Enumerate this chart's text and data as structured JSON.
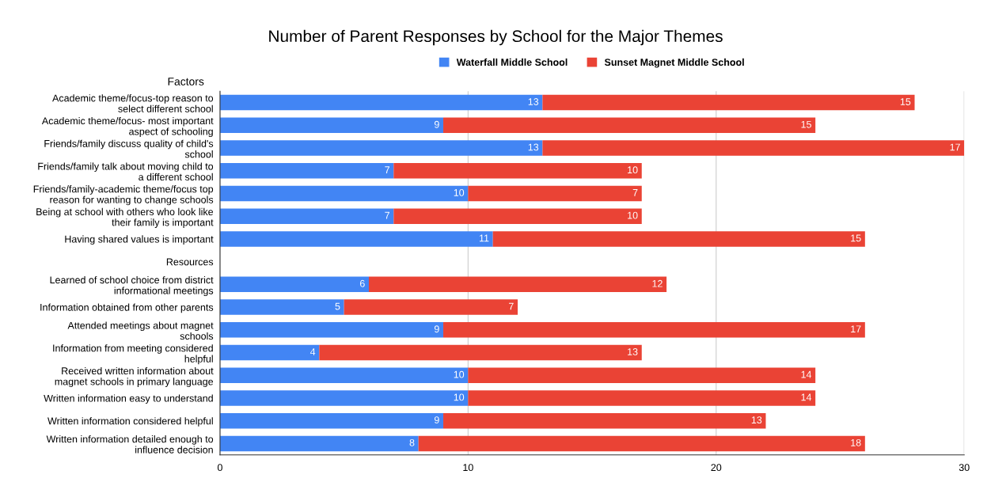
{
  "chart_data": {
    "type": "bar",
    "orientation": "horizontal",
    "stacked": true,
    "title": "Number of Parent Responses by School for the Major Themes",
    "ylabel": "Factors",
    "categories": [
      "Academic theme/focus-top reason to\nselect different school",
      "Academic theme/focus- most important\naspect of schooling",
      "Friends/family discuss quality of child's\nschool",
      "Friends/family talk about moving child to\na different school",
      "Friends/family-academic theme/focus top\nreason for wanting to change schools",
      "Being at school with others who look like\ntheir family is important",
      "Having shared values is important",
      "Resources",
      "Learned of school choice from district\ninformational meetings",
      "Information obtained from other parents",
      "Attended meetings about magnet\nschools",
      "Information from meeting considered\nhelpful",
      "Received written information about\nmagnet schools in primary language",
      "Written information easy to understand",
      "Written information considered helpful",
      "Written information detailed enough to\ninfluence decision"
    ],
    "series": [
      {
        "name": "Waterfall Middle School",
        "color": "#4285f4",
        "values": [
          13,
          9,
          13,
          7,
          10,
          7,
          11,
          null,
          6,
          5,
          9,
          4,
          10,
          10,
          9,
          8
        ]
      },
      {
        "name": "Sunset Magnet Middle School",
        "color": "#ea4335",
        "values": [
          15,
          15,
          17,
          10,
          7,
          10,
          15,
          null,
          12,
          7,
          17,
          13,
          14,
          14,
          13,
          18
        ]
      }
    ],
    "xlim": [
      0,
      30
    ],
    "xticks": [
      0,
      10,
      20,
      30
    ],
    "grid": "x",
    "legend": "top",
    "data_labels": true
  }
}
